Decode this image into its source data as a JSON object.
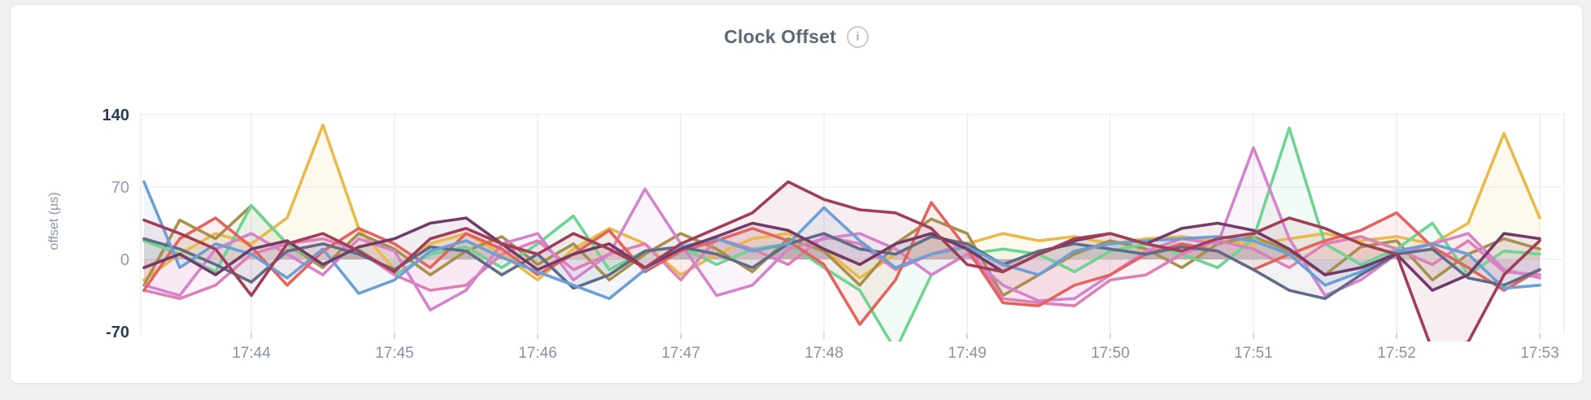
{
  "header": {
    "title": "Clock Offset",
    "info_icon_glyph": "i"
  },
  "chart_data": {
    "type": "line",
    "title": "Clock Offset",
    "xlabel": "",
    "ylabel": "offset (µs)",
    "ylim": [
      -70,
      140
    ],
    "grid": true,
    "legend": "none",
    "x_start": "17:43:15",
    "x_interval_seconds": 15,
    "x_tick_labels": [
      "17:44",
      "17:45",
      "17:46",
      "17:47",
      "17:48",
      "17:49",
      "17:50",
      "17:51",
      "17:52",
      "17:53"
    ],
    "y_ticks": [
      {
        "label": "140",
        "value": 140,
        "emphasis": true
      },
      {
        "label": "70",
        "value": 70,
        "emphasis": false
      },
      {
        "label": "0",
        "value": 0,
        "emphasis": false
      },
      {
        "label": "-70",
        "value": -70,
        "emphasis": true
      }
    ],
    "series": [
      {
        "name": "series-gold",
        "color": "#e9ba4b",
        "values": [
          -20,
          5,
          25,
          15,
          40,
          130,
          30,
          -10,
          15,
          25,
          5,
          -20,
          10,
          30,
          15,
          -15,
          5,
          20,
          25,
          10,
          -18,
          5,
          22,
          15,
          25,
          18,
          22,
          15,
          20,
          22,
          18,
          15,
          20,
          25,
          18,
          22,
          15,
          35,
          122,
          40
        ]
      },
      {
        "name": "series-olive",
        "color": "#a88f4d",
        "values": [
          -25,
          38,
          20,
          52,
          15,
          -8,
          25,
          10,
          -15,
          8,
          22,
          -5,
          15,
          -20,
          5,
          25,
          10,
          -12,
          20,
          8,
          -25,
          15,
          39,
          25,
          -35,
          -15,
          5,
          18,
          10,
          -8,
          15,
          22,
          8,
          -15,
          12,
          18,
          -20,
          5,
          20,
          10
        ]
      },
      {
        "name": "series-green",
        "color": "#6fd392",
        "values": [
          18,
          5,
          -12,
          52,
          15,
          -5,
          10,
          -15,
          5,
          12,
          -8,
          15,
          42,
          -10,
          8,
          12,
          -5,
          10,
          15,
          -8,
          -30,
          -88,
          -15,
          5,
          10,
          5,
          -12,
          8,
          15,
          5,
          -8,
          20,
          127,
          15,
          -5,
          10,
          35,
          -15,
          8,
          5
        ]
      },
      {
        "name": "series-magenta",
        "color": "#df7fb7",
        "values": [
          -30,
          -38,
          -25,
          5,
          15,
          20,
          8,
          -15,
          -30,
          -25,
          5,
          18,
          -10,
          5,
          15,
          -20,
          20,
          10,
          -5,
          22,
          15,
          -10,
          5,
          15,
          -38,
          -42,
          -45,
          -20,
          -15,
          5,
          18,
          10,
          -8,
          15,
          22,
          10,
          -5,
          18,
          -12,
          -15
        ]
      },
      {
        "name": "series-orchid",
        "color": "#d583cd",
        "values": [
          -25,
          -35,
          10,
          25,
          5,
          -15,
          20,
          8,
          -49,
          -30,
          15,
          25,
          -20,
          5,
          68,
          15,
          -35,
          -25,
          10,
          20,
          25,
          10,
          -15,
          5,
          -25,
          -40,
          -38,
          -15,
          8,
          20,
          15,
          108,
          20,
          -35,
          -20,
          5,
          15,
          25,
          -10,
          -18
        ]
      },
      {
        "name": "series-red",
        "color": "#e2645c",
        "values": [
          -30,
          20,
          40,
          12,
          -25,
          8,
          30,
          15,
          -8,
          25,
          10,
          -15,
          5,
          28,
          -12,
          8,
          18,
          30,
          18,
          -5,
          -63,
          -20,
          55,
          10,
          -42,
          -45,
          -25,
          -15,
          5,
          15,
          8,
          -10,
          5,
          18,
          28,
          45,
          12,
          -8,
          -30,
          -10
        ]
      },
      {
        "name": "series-slate",
        "color": "#5f6c88",
        "values": [
          20,
          10,
          -5,
          -22,
          8,
          15,
          5,
          -10,
          12,
          8,
          -15,
          5,
          -28,
          -15,
          8,
          12,
          5,
          -8,
          15,
          25,
          10,
          5,
          22,
          15,
          -5,
          8,
          15,
          10,
          5,
          12,
          8,
          -10,
          -30,
          -38,
          -15,
          5,
          10,
          -18,
          -25,
          -10
        ]
      },
      {
        "name": "series-blue",
        "color": "#6b9fd6",
        "values": [
          75,
          -8,
          15,
          5,
          -18,
          10,
          -33,
          -20,
          8,
          18,
          2,
          -12,
          -25,
          -38,
          -10,
          12,
          20,
          8,
          15,
          50,
          18,
          -8,
          5,
          12,
          -5,
          -15,
          8,
          15,
          18,
          20,
          22,
          18,
          5,
          -25,
          -12,
          8,
          15,
          5,
          -28,
          -25
        ]
      },
      {
        "name": "series-purple",
        "color": "#733a69",
        "values": [
          -8,
          5,
          -15,
          10,
          18,
          -5,
          12,
          20,
          35,
          40,
          15,
          -10,
          5,
          15,
          -8,
          10,
          22,
          35,
          28,
          10,
          -5,
          15,
          25,
          10,
          -12,
          5,
          18,
          25,
          15,
          30,
          35,
          28,
          10,
          -15,
          -8,
          5,
          -30,
          -15,
          25,
          20
        ]
      },
      {
        "name": "series-maroon",
        "color": "#a03e58",
        "values": [
          38,
          25,
          10,
          -35,
          15,
          25,
          8,
          -12,
          20,
          30,
          15,
          5,
          25,
          10,
          -8,
          15,
          30,
          45,
          75,
          58,
          48,
          45,
          30,
          -5,
          -12,
          5,
          20,
          25,
          15,
          8,
          20,
          25,
          40,
          30,
          15,
          5,
          -88,
          -80,
          -15,
          18
        ]
      }
    ]
  },
  "style_colors": {
    "page_background": "#eef0f2",
    "card_background": "#ffffff",
    "card_border": "#e4e6ea",
    "grid_line": "#ebecee",
    "tick_mark": "#c9cdd4",
    "title_text": "#5b6876",
    "x_tick_text": "#8792a5",
    "y_tick_emphasis_text": "#2b3a57",
    "y_tick_text": "#929cae",
    "area_fill_opacity": 0.09
  }
}
